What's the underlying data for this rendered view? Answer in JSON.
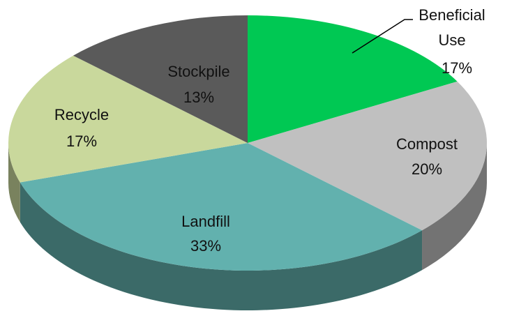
{
  "chart_data": {
    "type": "pie",
    "categories": [
      "Beneficial Use",
      "Compost",
      "Landfill",
      "Recycle",
      "Stockpile"
    ],
    "values": [
      17,
      20,
      33,
      17,
      13
    ],
    "value_labels": [
      "17%",
      "20%",
      "33%",
      "17%",
      "13%"
    ],
    "colors": [
      "#00c853",
      "#c0c0c0",
      "#62b1ae",
      "#c9d89c",
      "#5a5a5a"
    ]
  }
}
